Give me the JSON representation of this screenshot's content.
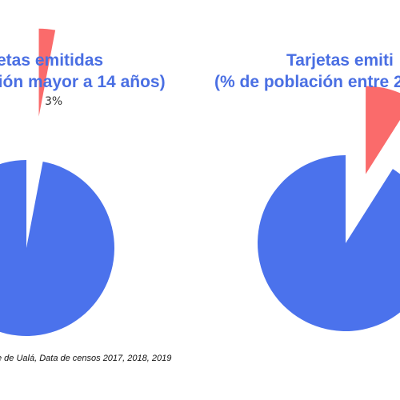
{
  "colors": {
    "title": "#4a6fe3",
    "primary_slice": "#4b72ec",
    "highlight_slice": "#fa6b6b"
  },
  "labels": {
    "left_title_line1": "etas emitidas",
    "left_title_line2": "ción mayor a 14 años)",
    "right_title_line1": "Tarjetas emiti",
    "right_title_line2": "(% de población entre 2",
    "slice_label_left": "3%",
    "source": "e de Ualá, Data de censos 2017, 2018, 2019"
  },
  "chart_data": [
    {
      "type": "pie",
      "title": "etas emitidas ción mayor a 14 años)",
      "categories": [
        "",
        ""
      ],
      "values": [
        3,
        97
      ],
      "slice_labels": [
        "3%",
        ""
      ],
      "exploded": [
        true,
        false
      ],
      "colors": [
        "#fa6b6b",
        "#4b72ec"
      ],
      "legend": "none"
    },
    {
      "type": "pie",
      "title": "Tarjetas emiti (% de población entre 2",
      "categories": [
        "",
        ""
      ],
      "values": [
        9,
        91
      ],
      "slice_labels": [
        "",
        ""
      ],
      "exploded": [
        true,
        false
      ],
      "colors": [
        "#fa6b6b",
        "#4b72ec"
      ],
      "legend": "none"
    }
  ]
}
